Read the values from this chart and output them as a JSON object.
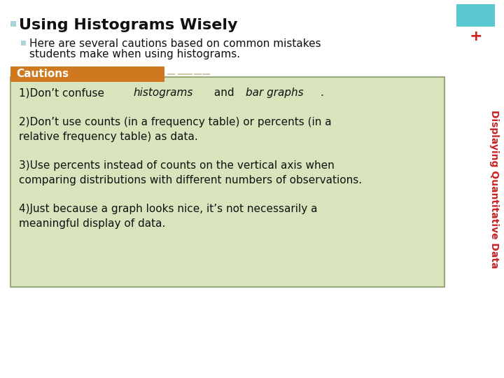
{
  "bg_color": "#ffffff",
  "title": "Using Histograms Wisely",
  "title_bullet_color": "#a8d4dc",
  "title_fontsize": 16,
  "subtitle_line1": "Here are several cautions based on common mistakes",
  "subtitle_line2": "students make when using histograms.",
  "subtitle_bullet_color": "#a8d4dc",
  "subtitle_fontsize": 11,
  "cautions_label": "Cautions",
  "cautions_label_color": "#ffffff",
  "cautions_header_bg": "#d07820",
  "cautions_box_bg": "#d8e4bc",
  "cautions_box_border": "#9aaa78",
  "item1_parts": [
    [
      "1)Don’t confuse ",
      false
    ],
    [
      "histograms",
      true
    ],
    [
      " and ",
      false
    ],
    [
      "bar graphs",
      true
    ],
    [
      ".",
      false
    ]
  ],
  "item2": "2)Don’t use counts (in a frequency table) or percents (in a\nrelative frequency table) as data.",
  "item3": "3)Use percents instead of counts on the vertical axis when\ncomparing distributions with different numbers of observations.",
  "item4": "4)Just because a graph looks nice, it’s not necessarily a\nmeaningful display of data.",
  "item_fontsize": 11,
  "side_text": "Displaying Quantitative Data",
  "side_text_color": "#cc2222",
  "side_box_color": "#5bc8d0",
  "plus_color": "#cc2222",
  "dash_color": "#ccccaa"
}
